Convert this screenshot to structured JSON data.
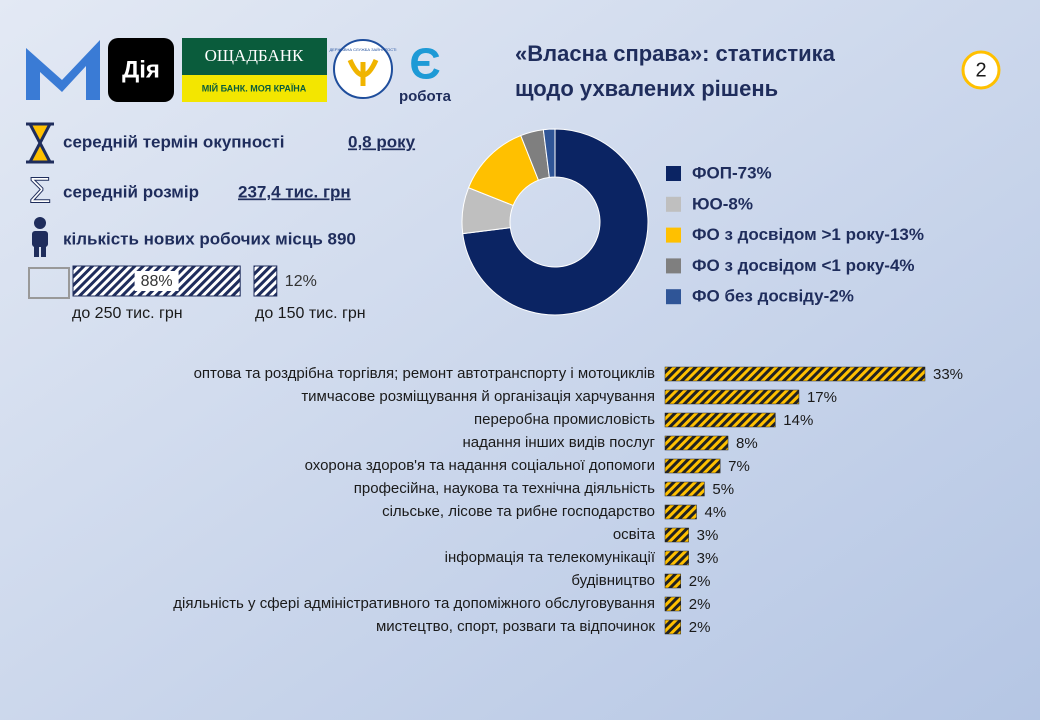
{
  "header": {
    "title_line1": "«Власна справа»: статистика",
    "title_line2": "щодо ухвалених рішень",
    "page_number": "2",
    "logos": {
      "diia": "Дія",
      "bank": "ОЩАДБАНК",
      "bank_slogan": "МІЙ БАНК. МОЯ КРАЇНА",
      "state_service": "ДЕРЖАВНА СЛУЖБА ЗАЙНЯТОСТІ",
      "erobota_letter": "Є",
      "erobota": "робота"
    }
  },
  "stats": [
    {
      "label": "середній термін окупності",
      "value": "0,8 року"
    },
    {
      "label": "середній розмір",
      "value": "237,4 тис. грн"
    },
    {
      "label": "кількість нових робочих місць 890"
    }
  ],
  "chart_data": [
    {
      "type": "bar",
      "orientation": "horizontal",
      "categories": [
        "до 250 тис. грн",
        "до 150 тис. грн"
      ],
      "values": [
        88,
        12
      ],
      "value_labels": [
        "88%",
        "12%"
      ],
      "color": "#1f2d5c"
    },
    {
      "type": "pie",
      "donut": true,
      "categories": [
        "ФОП-73%",
        "ЮО-8%",
        "ФО з досвідом >1 року-13%",
        "ФО з досвідом <1 року-4%",
        "ФО без досвіду-2%"
      ],
      "values": [
        73,
        8,
        13,
        4,
        2
      ],
      "colors": [
        "#0b2463",
        "#bfbfbf",
        "#ffc000",
        "#7f7f7f",
        "#2f5597"
      ]
    },
    {
      "type": "bar",
      "orientation": "horizontal",
      "color": "#ffc000",
      "categories": [
        "оптова та роздрібна торгівля; ремонт автотранспорту і мотоциклів",
        "тимчасове розміщування й організація харчування",
        "переробна промисловість",
        "надання інших видів послуг",
        "охорона здоров'я та надання соціальної допомоги",
        "професійна, наукова та технічна діяльність",
        "сільське, лісове та рибне господарство",
        "освіта",
        "інформація та телекомунікації",
        "будівництво",
        "діяльність у сфері адміністративного та допоміжного обслуговування",
        "мистецтво, спорт, розваги та відпочинок"
      ],
      "values": [
        33,
        17,
        14,
        8,
        7,
        5,
        4,
        3,
        3,
        2,
        2,
        2
      ],
      "value_labels": [
        "33%",
        "17%",
        "14%",
        "8%",
        "7%",
        "5%",
        "4%",
        "3%",
        "3%",
        "2%",
        "2%",
        "2%"
      ]
    }
  ]
}
